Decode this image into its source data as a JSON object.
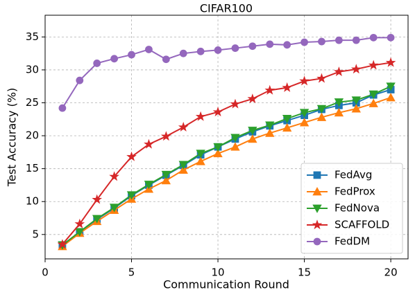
{
  "chart_data": {
    "type": "line",
    "title": "CIFAR100",
    "x_label": "Communication Round",
    "y_label": "Test Accuracy (%)",
    "x": [
      1,
      2,
      3,
      4,
      5,
      6,
      7,
      8,
      9,
      10,
      11,
      12,
      13,
      14,
      15,
      16,
      17,
      18,
      19,
      20
    ],
    "xlim": [
      0,
      21
    ],
    "xticks": [
      0,
      5,
      10,
      15,
      20
    ],
    "ylim": [
      1.3,
      38.3
    ],
    "yticks": [
      5,
      10,
      15,
      20,
      25,
      30,
      35
    ],
    "grid": true,
    "legend": "lower right",
    "series": [
      {
        "name": "FedAvg",
        "color": "#1f77b4",
        "marker": "square",
        "values": [
          3.4,
          5.4,
          7.3,
          9.0,
          10.9,
          12.5,
          14.0,
          15.5,
          17.1,
          18.3,
          19.5,
          20.6,
          21.5,
          22.3,
          23.1,
          24.0,
          24.6,
          25.0,
          26.2,
          27.0
        ]
      },
      {
        "name": "FedProx",
        "color": "#ff7f0e",
        "marker": "triangle-up",
        "values": [
          3.2,
          5.2,
          7.0,
          8.7,
          10.4,
          11.9,
          13.2,
          14.8,
          16.1,
          17.3,
          18.3,
          19.5,
          20.4,
          21.2,
          22.0,
          22.8,
          23.5,
          24.1,
          24.9,
          25.8
        ]
      },
      {
        "name": "FedNova",
        "color": "#2ca02c",
        "marker": "triangle-down",
        "values": [
          3.4,
          5.4,
          7.4,
          9.1,
          11.0,
          12.6,
          14.1,
          15.6,
          17.3,
          18.3,
          19.7,
          20.8,
          21.6,
          22.6,
          23.5,
          24.1,
          25.1,
          25.4,
          26.3,
          27.5
        ]
      },
      {
        "name": "SCAFFOLD",
        "color": "#d62728",
        "marker": "star",
        "values": [
          3.5,
          6.6,
          10.3,
          13.8,
          16.8,
          18.7,
          19.9,
          21.3,
          22.9,
          23.6,
          24.8,
          25.6,
          26.9,
          27.3,
          28.3,
          28.7,
          29.7,
          30.1,
          30.7,
          31.1
        ]
      },
      {
        "name": "FedDM",
        "color": "#9467bd",
        "marker": "circle",
        "values": [
          24.2,
          28.4,
          31.0,
          31.7,
          32.3,
          33.1,
          31.6,
          32.5,
          32.8,
          33.0,
          33.3,
          33.6,
          33.9,
          33.8,
          34.2,
          34.3,
          34.5,
          34.5,
          34.9,
          34.9
        ]
      }
    ]
  }
}
